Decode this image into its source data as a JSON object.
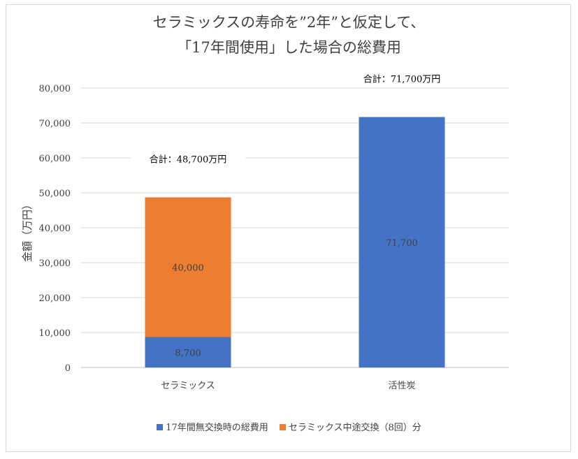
{
  "chart_data": {
    "type": "bar",
    "stacked": true,
    "title_lines": [
      "セラミックスの寿命を”2年”と仮定して、",
      "「17年間使用」した場合の総費用"
    ],
    "ylabel": "金額（万円）",
    "xlabel": "",
    "ylim": [
      0,
      80000
    ],
    "yticks": [
      0,
      10000,
      20000,
      30000,
      40000,
      50000,
      60000,
      70000,
      80000
    ],
    "ytick_labels": [
      "0",
      "10,000",
      "20,000",
      "30,000",
      "40,000",
      "50,000",
      "60,000",
      "70,000",
      "80,000"
    ],
    "categories": [
      "セラミックス",
      "活性炭"
    ],
    "series": [
      {
        "name": "17年間無交換時の総費用",
        "color": "#4472c4",
        "values": [
          8700,
          71700
        ],
        "labels": [
          "8,700",
          "71,700"
        ]
      },
      {
        "name": "セラミックス中途交換（8回）分",
        "color": "#ed7d31",
        "values": [
          40000,
          0
        ],
        "labels": [
          "40,000",
          ""
        ]
      }
    ],
    "totals": [
      "合計：48,700万円",
      "合計：71,700万円"
    ],
    "grid": true,
    "legend_position": "bottom"
  }
}
